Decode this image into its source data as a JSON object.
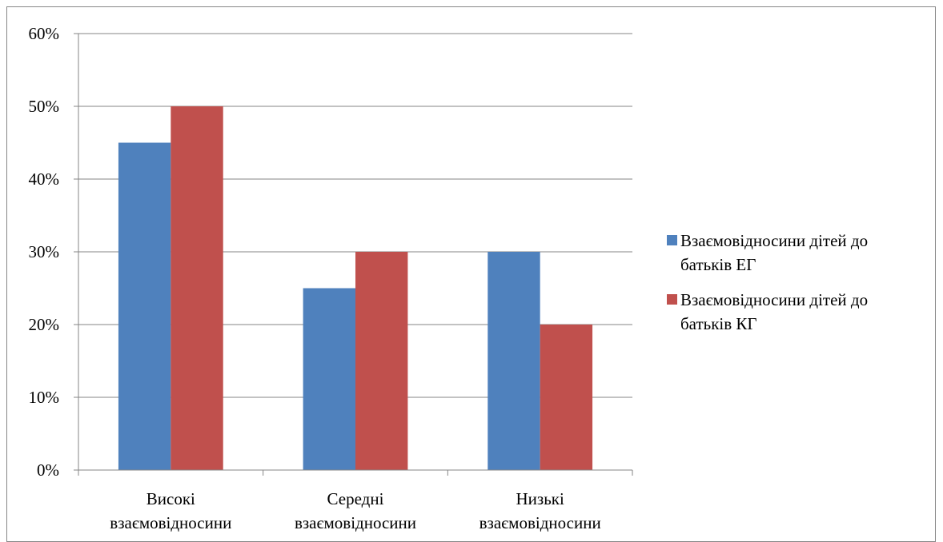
{
  "chart_data": {
    "type": "bar",
    "title": "",
    "xlabel": "",
    "ylabel": "",
    "categories": [
      [
        "Високі",
        "взаємовідносини"
      ],
      [
        "Середні",
        "взаємовідносини"
      ],
      [
        "Низькі",
        "взаємовідносини"
      ]
    ],
    "series": [
      {
        "name": "Взаємовідносини дітей до батьків ЕГ",
        "legend_lines": [
          "Взаємовідносини дітей до",
          "батьків ЕГ"
        ],
        "color": "#4F81BD",
        "values": [
          45,
          25,
          30
        ]
      },
      {
        "name": "Взаємовідносини дітей до батьків КГ",
        "legend_lines": [
          "Взаємовідносини дітей до",
          "батьків КГ"
        ],
        "color": "#C0504D",
        "values": [
          50,
          30,
          20
        ]
      }
    ],
    "ylim": [
      0,
      60
    ],
    "yticks": [
      0,
      10,
      20,
      30,
      40,
      50,
      60
    ],
    "ytick_labels": [
      "0%",
      "10%",
      "20%",
      "30%",
      "40%",
      "50%",
      "60%"
    ],
    "grid": true,
    "legend_position": "right"
  }
}
